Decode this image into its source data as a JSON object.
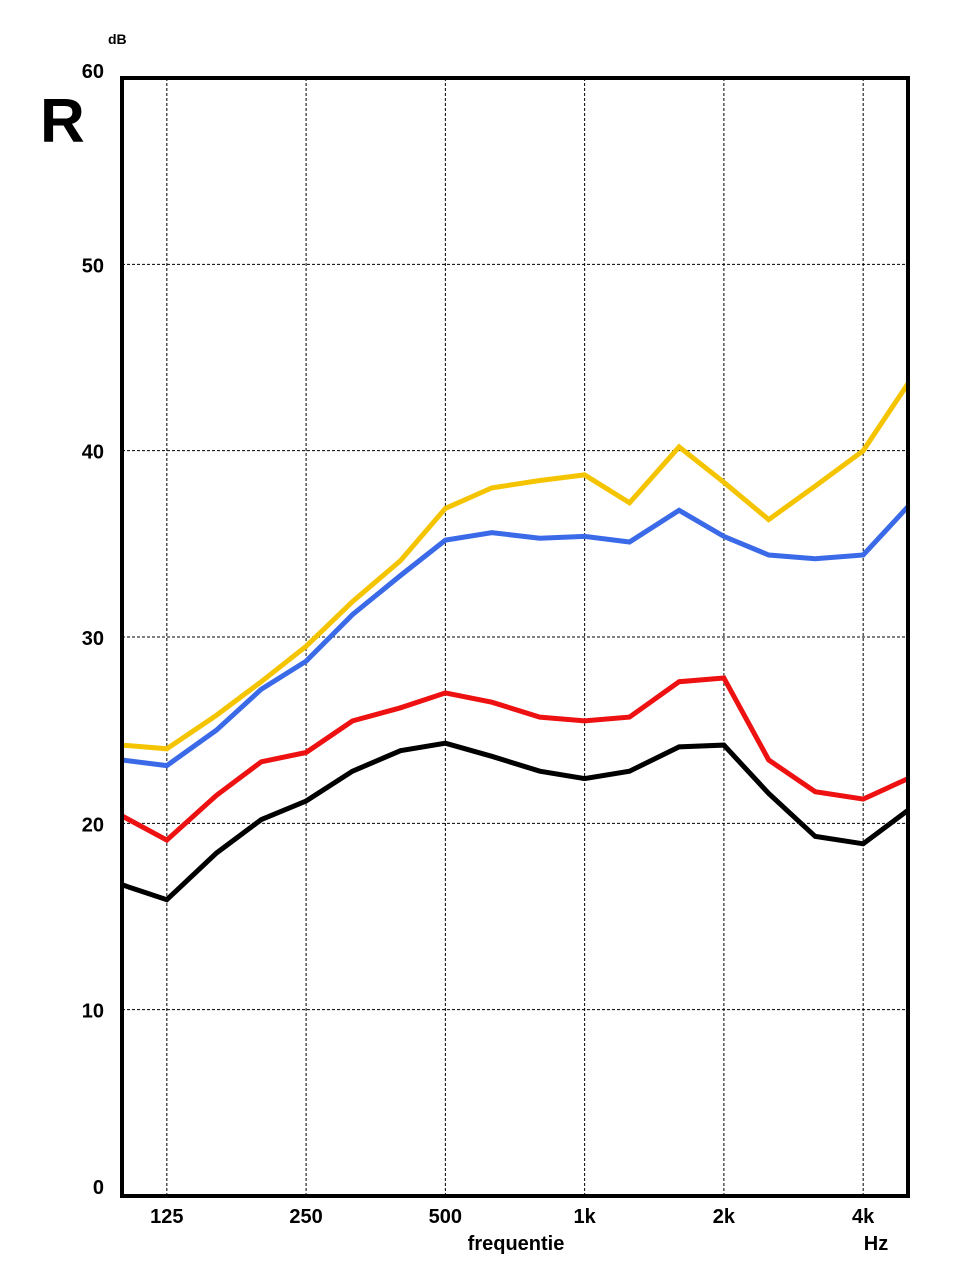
{
  "chart_data": {
    "type": "line",
    "title": "R",
    "y_unit": "dB",
    "xlabel": "frequentie",
    "x_unit": "Hz",
    "ylim": [
      0,
      60
    ],
    "y_ticks": [
      "0",
      "10",
      "20",
      "30",
      "40",
      "50",
      "60"
    ],
    "x_scale": "log",
    "x_ticks": [
      {
        "value": 125,
        "label": "125"
      },
      {
        "value": 250,
        "label": "250"
      },
      {
        "value": 500,
        "label": "500"
      },
      {
        "value": 1000,
        "label": "1k"
      },
      {
        "value": 2000,
        "label": "2k"
      },
      {
        "value": 4000,
        "label": "4k"
      }
    ],
    "x": [
      100,
      125,
      160,
      200,
      250,
      315,
      400,
      500,
      630,
      800,
      1000,
      1250,
      1600,
      2000,
      2500,
      3150,
      4000,
      5000
    ],
    "grid": true,
    "series": [
      {
        "color": "#f5c400",
        "values": [
          24.2,
          24.0,
          25.8,
          27.6,
          29.5,
          31.9,
          34.1,
          36.9,
          38.0,
          38.4,
          38.7,
          37.2,
          40.2,
          38.3,
          36.3,
          38.1,
          40.0,
          43.6
        ]
      },
      {
        "color": "#3b6ae8",
        "values": [
          23.4,
          23.1,
          25.0,
          27.2,
          28.7,
          31.2,
          33.3,
          35.2,
          35.6,
          35.3,
          35.4,
          35.1,
          36.8,
          35.4,
          34.4,
          34.2,
          34.4,
          37.0
        ]
      },
      {
        "color": "#ee1111",
        "values": [
          20.4,
          19.1,
          21.5,
          23.3,
          23.8,
          25.5,
          26.2,
          27.0,
          26.5,
          25.7,
          25.5,
          25.7,
          27.6,
          27.8,
          23.4,
          21.7,
          21.3,
          22.4
        ]
      },
      {
        "color": "#000000",
        "values": [
          16.7,
          15.9,
          18.4,
          20.2,
          21.2,
          22.8,
          23.9,
          24.3,
          23.6,
          22.8,
          22.4,
          22.8,
          24.1,
          24.2,
          21.6,
          19.3,
          18.9,
          20.7
        ]
      }
    ]
  }
}
